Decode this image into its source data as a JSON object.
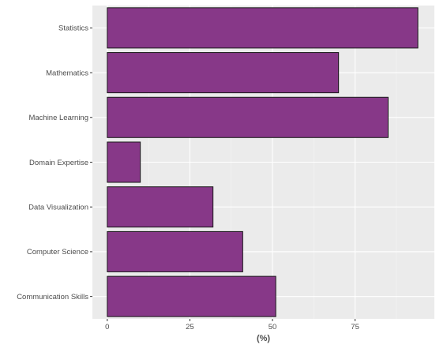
{
  "chart_data": {
    "type": "bar",
    "orientation": "horizontal",
    "categories": [
      "Statistics",
      "Mathematics",
      "Machine Learning",
      "Domain Expertise",
      "Data Visualization",
      "Computer Science",
      "Communication Skills"
    ],
    "values": [
      94,
      70,
      85,
      10,
      32,
      41,
      51
    ],
    "xlabel": "(%)",
    "ylabel": "",
    "title": "",
    "xlim": [
      -4.5,
      99
    ],
    "xticks": [
      0,
      25,
      50,
      75
    ],
    "xtick_labels": [
      "0",
      "25",
      "50",
      "75"
    ],
    "grid": true,
    "colors": {
      "bar_fill": "#873888",
      "bar_stroke": "#1a1a1a",
      "panel_bg": "#ebebeb",
      "grid_major": "#ffffff",
      "grid_minor": "#f5f5f5"
    }
  }
}
